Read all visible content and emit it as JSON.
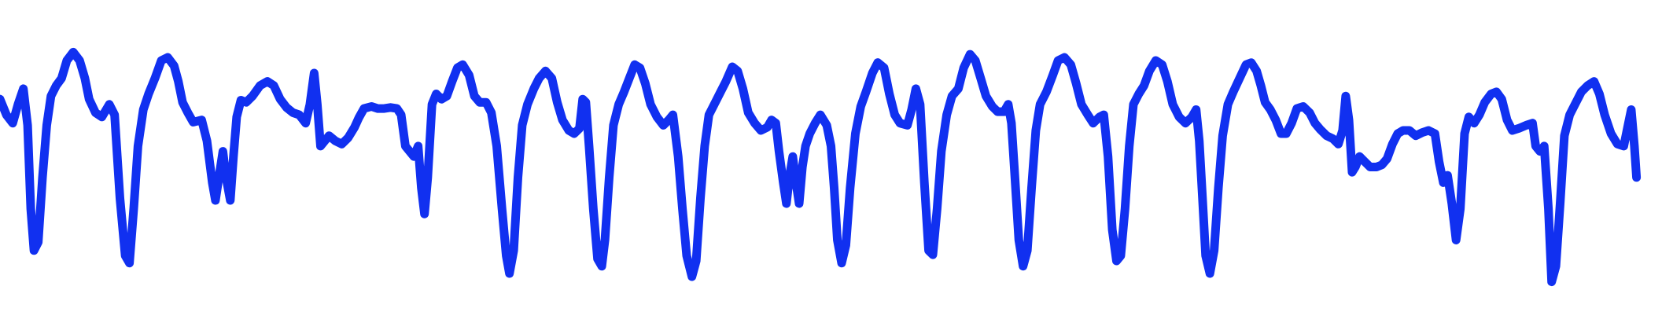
{
  "chart_data": {
    "type": "line",
    "title": "",
    "xlabel": "",
    "ylabel": "",
    "axes_visible": false,
    "grid": false,
    "legend": "none",
    "line_color": "#1130f0",
    "background_color": "#ffffff",
    "xlim": [
      0,
      1566
    ],
    "ylim": [
      0,
      320
    ],
    "series": [
      {
        "points": [
          [
            0,
            95
          ],
          [
            6,
            110
          ],
          [
            12,
            118
          ],
          [
            17,
            100
          ],
          [
            22,
            85
          ],
          [
            26,
            120
          ],
          [
            29,
            200
          ],
          [
            32,
            240
          ],
          [
            36,
            232
          ],
          [
            40,
            170
          ],
          [
            44,
            120
          ],
          [
            48,
            92
          ],
          [
            53,
            82
          ],
          [
            58,
            75
          ],
          [
            63,
            58
          ],
          [
            69,
            50
          ],
          [
            75,
            58
          ],
          [
            80,
            75
          ],
          [
            84,
            95
          ],
          [
            90,
            108
          ],
          [
            96,
            112
          ],
          [
            103,
            100
          ],
          [
            108,
            110
          ],
          [
            113,
            190
          ],
          [
            118,
            245
          ],
          [
            122,
            252
          ],
          [
            126,
            200
          ],
          [
            130,
            140
          ],
          [
            135,
            105
          ],
          [
            140,
            90
          ],
          [
            146,
            75
          ],
          [
            152,
            58
          ],
          [
            158,
            55
          ],
          [
            164,
            63
          ],
          [
            168,
            78
          ],
          [
            172,
            98
          ],
          [
            177,
            108
          ],
          [
            182,
            117
          ],
          [
            190,
            115
          ],
          [
            195,
            135
          ],
          [
            200,
            175
          ],
          [
            203,
            192
          ],
          [
            207,
            165
          ],
          [
            210,
            145
          ],
          [
            213,
            170
          ],
          [
            217,
            192
          ],
          [
            220,
            150
          ],
          [
            223,
            112
          ],
          [
            227,
            96
          ],
          [
            232,
            98
          ],
          [
            238,
            92
          ],
          [
            245,
            82
          ],
          [
            252,
            78
          ],
          [
            258,
            82
          ],
          [
            264,
            95
          ],
          [
            270,
            103
          ],
          [
            276,
            108
          ],
          [
            282,
            110
          ],
          [
            288,
            118
          ],
          [
            292,
            100
          ],
          [
            296,
            70
          ],
          [
            299,
            100
          ],
          [
            302,
            140
          ],
          [
            306,
            135
          ],
          [
            310,
            130
          ],
          [
            316,
            135
          ],
          [
            322,
            138
          ],
          [
            328,
            132
          ],
          [
            334,
            122
          ],
          [
            338,
            113
          ],
          [
            343,
            104
          ],
          [
            350,
            102
          ],
          [
            356,
            104
          ],
          [
            362,
            104
          ],
          [
            368,
            103
          ],
          [
            374,
            104
          ],
          [
            378,
            110
          ],
          [
            382,
            140
          ],
          [
            386,
            145
          ],
          [
            390,
            150
          ],
          [
            394,
            140
          ],
          [
            397,
            180
          ],
          [
            400,
            205
          ],
          [
            403,
            170
          ],
          [
            407,
            100
          ],
          [
            411,
            90
          ],
          [
            416,
            95
          ],
          [
            421,
            92
          ],
          [
            426,
            78
          ],
          [
            431,
            65
          ],
          [
            436,
            62
          ],
          [
            442,
            72
          ],
          [
            447,
            92
          ],
          [
            452,
            98
          ],
          [
            458,
            98
          ],
          [
            463,
            108
          ],
          [
            468,
            140
          ],
          [
            473,
            200
          ],
          [
            477,
            245
          ],
          [
            480,
            262
          ],
          [
            484,
            240
          ],
          [
            488,
            170
          ],
          [
            492,
            120
          ],
          [
            497,
            100
          ],
          [
            503,
            85
          ],
          [
            508,
            75
          ],
          [
            514,
            68
          ],
          [
            520,
            75
          ],
          [
            525,
            98
          ],
          [
            530,
            115
          ],
          [
            536,
            125
          ],
          [
            541,
            128
          ],
          [
            546,
            123
          ],
          [
            549,
            95
          ],
          [
            552,
            98
          ],
          [
            555,
            140
          ],
          [
            559,
            200
          ],
          [
            563,
            248
          ],
          [
            567,
            255
          ],
          [
            570,
            230
          ],
          [
            574,
            170
          ],
          [
            578,
            120
          ],
          [
            583,
            100
          ],
          [
            588,
            88
          ],
          [
            593,
            75
          ],
          [
            598,
            62
          ],
          [
            603,
            65
          ],
          [
            608,
            80
          ],
          [
            613,
            100
          ],
          [
            619,
            112
          ],
          [
            625,
            120
          ],
          [
            630,
            115
          ],
          [
            634,
            110
          ],
          [
            639,
            150
          ],
          [
            643,
            200
          ],
          [
            647,
            245
          ],
          [
            652,
            265
          ],
          [
            656,
            250
          ],
          [
            660,
            190
          ],
          [
            664,
            140
          ],
          [
            668,
            110
          ],
          [
            673,
            100
          ],
          [
            678,
            90
          ],
          [
            684,
            78
          ],
          [
            690,
            64
          ],
          [
            695,
            68
          ],
          [
            700,
            85
          ],
          [
            705,
            108
          ],
          [
            711,
            118
          ],
          [
            717,
            125
          ],
          [
            723,
            122
          ],
          [
            727,
            115
          ],
          [
            731,
            118
          ],
          [
            734,
            145
          ],
          [
            738,
            175
          ],
          [
            741,
            195
          ],
          [
            744,
            168
          ],
          [
            747,
            150
          ],
          [
            750,
            175
          ],
          [
            753,
            195
          ],
          [
            756,
            160
          ],
          [
            759,
            140
          ],
          [
            763,
            128
          ],
          [
            768,
            118
          ],
          [
            773,
            110
          ],
          [
            779,
            120
          ],
          [
            783,
            140
          ],
          [
            786,
            180
          ],
          [
            789,
            230
          ],
          [
            793,
            252
          ],
          [
            797,
            235
          ],
          [
            801,
            180
          ],
          [
            806,
            128
          ],
          [
            811,
            102
          ],
          [
            816,
            88
          ],
          [
            822,
            70
          ],
          [
            827,
            60
          ],
          [
            833,
            65
          ],
          [
            838,
            90
          ],
          [
            843,
            110
          ],
          [
            848,
            118
          ],
          [
            855,
            120
          ],
          [
            859,
            105
          ],
          [
            863,
            85
          ],
          [
            867,
            100
          ],
          [
            871,
            175
          ],
          [
            875,
            240
          ],
          [
            879,
            244
          ],
          [
            883,
            200
          ],
          [
            887,
            145
          ],
          [
            892,
            110
          ],
          [
            897,
            92
          ],
          [
            903,
            85
          ],
          [
            908,
            65
          ],
          [
            914,
            52
          ],
          [
            919,
            58
          ],
          [
            924,
            75
          ],
          [
            929,
            92
          ],
          [
            935,
            102
          ],
          [
            940,
            107
          ],
          [
            946,
            107
          ],
          [
            950,
            100
          ],
          [
            953,
            118
          ],
          [
            956,
            165
          ],
          [
            960,
            230
          ],
          [
            964,
            255
          ],
          [
            968,
            240
          ],
          [
            972,
            180
          ],
          [
            976,
            125
          ],
          [
            980,
            100
          ],
          [
            986,
            88
          ],
          [
            992,
            72
          ],
          [
            997,
            58
          ],
          [
            1003,
            55
          ],
          [
            1009,
            62
          ],
          [
            1014,
            80
          ],
          [
            1019,
            100
          ],
          [
            1025,
            110
          ],
          [
            1030,
            118
          ],
          [
            1036,
            112
          ],
          [
            1040,
            110
          ],
          [
            1044,
            150
          ],
          [
            1048,
            220
          ],
          [
            1052,
            250
          ],
          [
            1056,
            245
          ],
          [
            1060,
            200
          ],
          [
            1064,
            140
          ],
          [
            1068,
            100
          ],
          [
            1073,
            90
          ],
          [
            1078,
            82
          ],
          [
            1083,
            68
          ],
          [
            1089,
            58
          ],
          [
            1095,
            62
          ],
          [
            1100,
            78
          ],
          [
            1105,
            100
          ],
          [
            1111,
            112
          ],
          [
            1117,
            118
          ],
          [
            1123,
            112
          ],
          [
            1127,
            105
          ],
          [
            1130,
            135
          ],
          [
            1133,
            190
          ],
          [
            1136,
            245
          ],
          [
            1140,
            262
          ],
          [
            1144,
            240
          ],
          [
            1148,
            180
          ],
          [
            1152,
            130
          ],
          [
            1157,
            100
          ],
          [
            1162,
            88
          ],
          [
            1168,
            75
          ],
          [
            1174,
            62
          ],
          [
            1179,
            60
          ],
          [
            1184,
            68
          ],
          [
            1188,
            82
          ],
          [
            1192,
            98
          ],
          [
            1197,
            105
          ],
          [
            1202,
            115
          ],
          [
            1207,
            128
          ],
          [
            1212,
            128
          ],
          [
            1217,
            118
          ],
          [
            1222,
            104
          ],
          [
            1228,
            102
          ],
          [
            1234,
            108
          ],
          [
            1239,
            118
          ],
          [
            1244,
            124
          ],
          [
            1250,
            130
          ],
          [
            1256,
            133
          ],
          [
            1261,
            138
          ],
          [
            1265,
            125
          ],
          [
            1268,
            92
          ],
          [
            1271,
            115
          ],
          [
            1274,
            165
          ],
          [
            1277,
            160
          ],
          [
            1281,
            150
          ],
          [
            1286,
            155
          ],
          [
            1291,
            160
          ],
          [
            1297,
            160
          ],
          [
            1302,
            158
          ],
          [
            1307,
            152
          ],
          [
            1312,
            138
          ],
          [
            1317,
            128
          ],
          [
            1322,
            125
          ],
          [
            1328,
            125
          ],
          [
            1334,
            130
          ],
          [
            1340,
            127
          ],
          [
            1346,
            125
          ],
          [
            1352,
            128
          ],
          [
            1356,
            155
          ],
          [
            1360,
            175
          ],
          [
            1364,
            168
          ],
          [
            1368,
            195
          ],
          [
            1372,
            230
          ],
          [
            1376,
            200
          ],
          [
            1380,
            128
          ],
          [
            1384,
            112
          ],
          [
            1389,
            118
          ],
          [
            1394,
            110
          ],
          [
            1399,
            98
          ],
          [
            1405,
            90
          ],
          [
            1410,
            88
          ],
          [
            1415,
            95
          ],
          [
            1420,
            115
          ],
          [
            1425,
            125
          ],
          [
            1431,
            123
          ],
          [
            1438,
            120
          ],
          [
            1444,
            118
          ],
          [
            1447,
            140
          ],
          [
            1451,
            145
          ],
          [
            1455,
            140
          ],
          [
            1459,
            200
          ],
          [
            1462,
            270
          ],
          [
            1466,
            255
          ],
          [
            1470,
            195
          ],
          [
            1474,
            130
          ],
          [
            1479,
            110
          ],
          [
            1484,
            100
          ],
          [
            1490,
            88
          ],
          [
            1496,
            82
          ],
          [
            1502,
            78
          ],
          [
            1507,
            90
          ],
          [
            1512,
            110
          ],
          [
            1518,
            128
          ],
          [
            1524,
            138
          ],
          [
            1530,
            140
          ],
          [
            1534,
            120
          ],
          [
            1537,
            105
          ],
          [
            1540,
            140
          ],
          [
            1542,
            170
          ]
        ]
      }
    ]
  }
}
